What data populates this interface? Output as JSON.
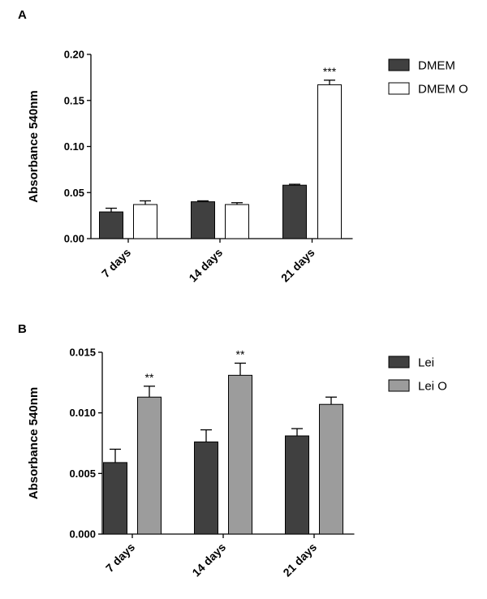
{
  "chart_data": [
    {
      "type": "bar",
      "panel_label": "A",
      "categories": [
        "7 days",
        "14 days",
        "21 days"
      ],
      "series": [
        {
          "name": "DMEM",
          "values": [
            0.029,
            0.04,
            0.058
          ],
          "errors": [
            0.004,
            0.001,
            0.001
          ],
          "color": "#404040"
        },
        {
          "name": "DMEM O",
          "values": [
            0.037,
            0.037,
            0.167
          ],
          "errors": [
            0.004,
            0.002,
            0.005
          ],
          "color": "#ffffff"
        }
      ],
      "annotations": [
        {
          "category": "21 days",
          "series": "DMEM O",
          "text": "***"
        }
      ],
      "ylabel": "Absorbance 540nm",
      "ylim": [
        0,
        0.2
      ],
      "yticks": [
        0.0,
        0.05,
        0.1,
        0.15,
        0.2
      ],
      "ytick_labels": [
        "0.00",
        "0.05",
        "0.10",
        "0.15",
        "0.20"
      ],
      "legend": "right",
      "grid": false
    },
    {
      "type": "bar",
      "panel_label": "B",
      "categories": [
        "7 days",
        "14 days",
        "21 days"
      ],
      "series": [
        {
          "name": "Lei",
          "values": [
            0.0059,
            0.0076,
            0.0081
          ],
          "errors": [
            0.0011,
            0.001,
            0.0006
          ],
          "color": "#404040"
        },
        {
          "name": "Lei O",
          "values": [
            0.0113,
            0.0131,
            0.0107
          ],
          "errors": [
            0.0009,
            0.001,
            0.0006
          ],
          "color": "#9c9c9c"
        }
      ],
      "annotations": [
        {
          "category": "7 days",
          "series": "Lei O",
          "text": "**"
        },
        {
          "category": "14 days",
          "series": "Lei O",
          "text": "**"
        }
      ],
      "ylabel": "Absorbance 540nm",
      "ylim": [
        0,
        0.015
      ],
      "yticks": [
        0.0,
        0.005,
        0.01,
        0.015
      ],
      "ytick_labels": [
        "0.000",
        "0.005",
        "0.010",
        "0.015"
      ],
      "legend": "right",
      "grid": false
    }
  ]
}
